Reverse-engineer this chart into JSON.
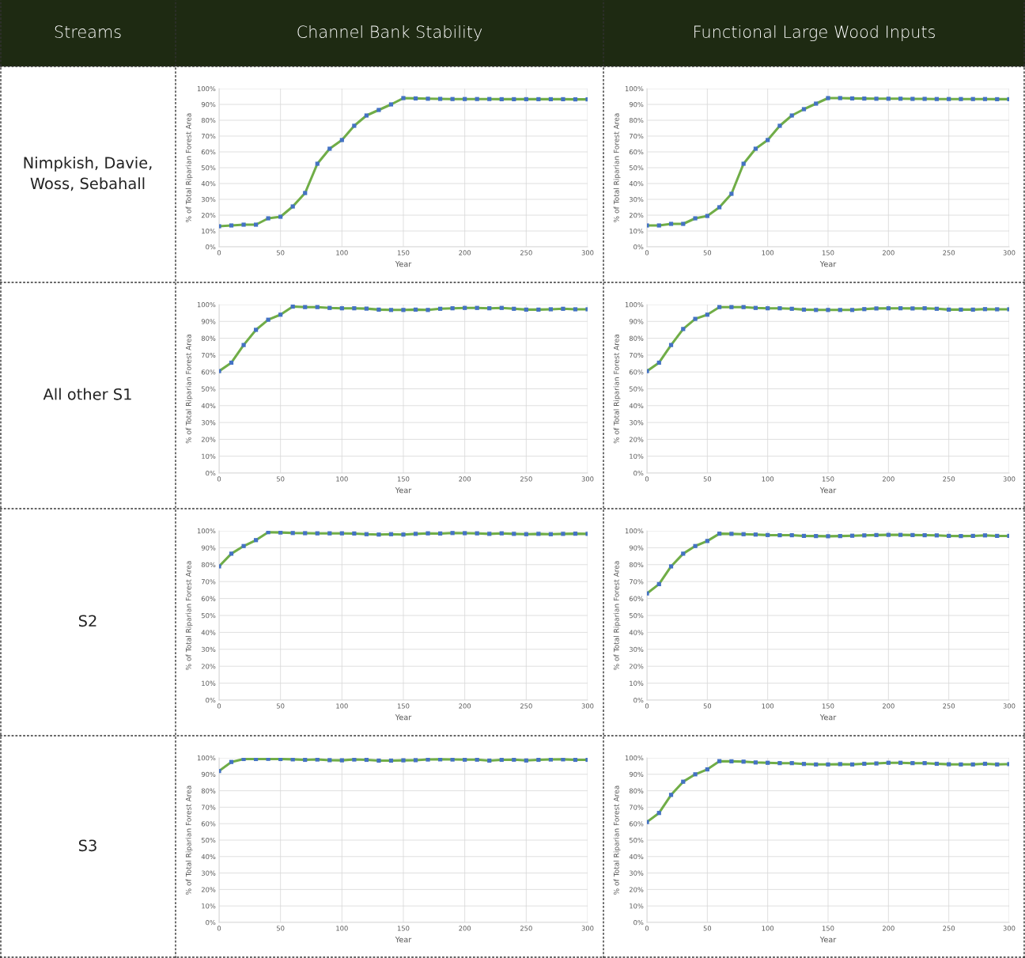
{
  "chart_data": [
    {
      "type": "other",
      "annotations": [
        "Streams",
        "Channel Bank Stability",
        "Functional Large Wood Inputs",
        "Nimpkish, Davie, Woss, Sebahall",
        "All other S1",
        "S2",
        "S3"
      ]
    },
    {
      "type": "line",
      "xlabel": "Year",
      "ylabel": "% of Total Riparian Forest Area",
      "x": [
        0,
        10,
        20,
        30,
        40,
        50,
        60,
        70,
        80,
        90,
        100,
        110,
        120,
        130,
        140,
        150,
        160,
        170,
        180,
        190,
        200,
        210,
        220,
        230,
        240,
        250,
        260,
        270,
        280,
        290,
        300
      ],
      "xlim": [
        0,
        300
      ],
      "xticks": [
        0,
        50,
        100,
        150,
        200,
        250,
        300
      ],
      "ylim": [
        0,
        100
      ],
      "yticks": [
        {
          "value": 0,
          "label": "0%"
        },
        {
          "value": 10,
          "label": "10%"
        },
        {
          "value": 20,
          "label": "20%"
        },
        {
          "value": 30,
          "label": "30%"
        },
        {
          "value": 40,
          "label": "40%"
        },
        {
          "value": 50,
          "label": "50%"
        },
        {
          "value": 60,
          "label": "60%"
        },
        {
          "value": 70,
          "label": "70%"
        },
        {
          "value": 80,
          "label": "80%"
        },
        {
          "value": 90,
          "label": "90%"
        },
        {
          "value": 100,
          "label": "100%"
        }
      ],
      "grid": true,
      "marker": "square",
      "line_style": "solid",
      "series": [
        {
          "color": "#70ad47",
          "colors": [
            "#4472c4",
            "#4472c4",
            "#4472c4",
            "#4472c4",
            "#4472c4",
            "#4472c4",
            "#4472c4",
            "#4472c4",
            "#4472c4",
            "#4472c4",
            "#4472c4",
            "#4472c4",
            "#4472c4",
            "#4472c4",
            "#4472c4",
            "#4472c4",
            "#4472c4",
            "#4472c4",
            "#4472c4",
            "#4472c4",
            "#4472c4",
            "#4472c4",
            "#4472c4",
            "#4472c4",
            "#4472c4",
            "#4472c4",
            "#4472c4",
            "#4472c4",
            "#4472c4",
            "#4472c4",
            "#4472c4"
          ],
          "values": [
            13,
            13.5,
            14,
            14,
            18,
            19,
            25.5,
            34,
            52.5,
            62,
            67.5,
            76.5,
            83,
            86.5,
            90,
            94,
            93.8,
            93.6,
            93.5,
            93.4,
            93.4,
            93.4,
            93.4,
            93.3,
            93.3,
            93.3,
            93.3,
            93.3,
            93.3,
            93.2,
            93.2
          ]
        }
      ]
    },
    {
      "type": "line",
      "xlabel": "Year",
      "ylabel": "% of Total Riparian Forest Area",
      "x": [
        0,
        10,
        20,
        30,
        40,
        50,
        60,
        70,
        80,
        90,
        100,
        110,
        120,
        130,
        140,
        150,
        160,
        170,
        180,
        190,
        200,
        210,
        220,
        230,
        240,
        250,
        260,
        270,
        280,
        290,
        300
      ],
      "xlim": [
        0,
        300
      ],
      "xticks": [
        0,
        50,
        100,
        150,
        200,
        250,
        300
      ],
      "ylim": [
        0,
        100
      ],
      "yticks": [
        {
          "value": 0,
          "label": "0%"
        },
        {
          "value": 10,
          "label": "10%"
        },
        {
          "value": 20,
          "label": "20%"
        },
        {
          "value": 30,
          "label": "30%"
        },
        {
          "value": 40,
          "label": "40%"
        },
        {
          "value": 50,
          "label": "50%"
        },
        {
          "value": 60,
          "label": "60%"
        },
        {
          "value": 70,
          "label": "70%"
        },
        {
          "value": 80,
          "label": "80%"
        },
        {
          "value": 90,
          "label": "90%"
        },
        {
          "value": 100,
          "label": "100%"
        }
      ],
      "grid": true,
      "marker": "square",
      "line_style": "solid",
      "series": [
        {
          "color": "#70ad47",
          "colors": [
            "#4472c4",
            "#4472c4",
            "#4472c4",
            "#4472c4",
            "#4472c4",
            "#4472c4",
            "#4472c4",
            "#4472c4",
            "#4472c4",
            "#4472c4",
            "#4472c4",
            "#4472c4",
            "#4472c4",
            "#4472c4",
            "#4472c4",
            "#4472c4",
            "#4472c4",
            "#4472c4",
            "#4472c4",
            "#4472c4",
            "#4472c4",
            "#4472c4",
            "#4472c4",
            "#4472c4",
            "#4472c4",
            "#4472c4",
            "#4472c4",
            "#4472c4",
            "#4472c4",
            "#4472c4",
            "#4472c4"
          ],
          "values": [
            13.5,
            13.5,
            14.5,
            14.5,
            18,
            19.5,
            25,
            33.5,
            52.5,
            62,
            67.5,
            76.5,
            83,
            87,
            90.5,
            94,
            94,
            93.8,
            93.7,
            93.6,
            93.6,
            93.6,
            93.5,
            93.5,
            93.4,
            93.4,
            93.4,
            93.4,
            93.4,
            93.3,
            93.3
          ]
        }
      ]
    },
    {
      "type": "line",
      "xlabel": "Year",
      "ylabel": "% of Total Riparian Forest Area",
      "x": [
        0,
        10,
        20,
        30,
        40,
        50,
        60,
        70,
        80,
        90,
        100,
        110,
        120,
        130,
        140,
        150,
        160,
        170,
        180,
        190,
        200,
        210,
        220,
        230,
        240,
        250,
        260,
        270,
        280,
        290,
        300
      ],
      "xlim": [
        0,
        300
      ],
      "xticks": [
        0,
        50,
        100,
        150,
        200,
        250,
        300
      ],
      "ylim": [
        0,
        100
      ],
      "yticks": [
        {
          "value": 0,
          "label": "0%"
        },
        {
          "value": 10,
          "label": "10%"
        },
        {
          "value": 20,
          "label": "20%"
        },
        {
          "value": 30,
          "label": "30%"
        },
        {
          "value": 40,
          "label": "40%"
        },
        {
          "value": 50,
          "label": "50%"
        },
        {
          "value": 60,
          "label": "60%"
        },
        {
          "value": 70,
          "label": "70%"
        },
        {
          "value": 80,
          "label": "80%"
        },
        {
          "value": 90,
          "label": "90%"
        },
        {
          "value": 100,
          "label": "100%"
        }
      ],
      "grid": true,
      "marker": "square",
      "line_style": "solid",
      "series": [
        {
          "color": "#70ad47",
          "colors": [
            "#4472c4",
            "#4472c4",
            "#4472c4",
            "#4472c4",
            "#4472c4",
            "#4472c4",
            "#4472c4",
            "#4472c4",
            "#4472c4",
            "#4472c4",
            "#4472c4",
            "#4472c4",
            "#4472c4",
            "#4472c4",
            "#4472c4",
            "#4472c4",
            "#4472c4",
            "#4472c4",
            "#4472c4",
            "#4472c4",
            "#4472c4",
            "#4472c4",
            "#4472c4",
            "#4472c4",
            "#4472c4",
            "#4472c4",
            "#4472c4",
            "#4472c4",
            "#4472c4",
            "#4472c4",
            "#4472c4"
          ],
          "values": [
            60.5,
            65.5,
            76,
            85,
            91,
            94,
            98.8,
            98.5,
            98.5,
            98,
            97.8,
            97.8,
            97.6,
            97,
            96.8,
            96.8,
            97,
            96.8,
            97.5,
            97.8,
            98,
            98,
            97.8,
            98,
            97.5,
            97,
            97,
            97.2,
            97.5,
            97.2,
            97.2
          ]
        }
      ]
    },
    {
      "type": "line",
      "xlabel": "Year",
      "ylabel": "% of Total Riparian Forest Area",
      "x": [
        0,
        10,
        20,
        30,
        40,
        50,
        60,
        70,
        80,
        90,
        100,
        110,
        120,
        130,
        140,
        150,
        160,
        170,
        180,
        190,
        200,
        210,
        220,
        230,
        240,
        250,
        260,
        270,
        280,
        290,
        300
      ],
      "xlim": [
        0,
        300
      ],
      "xticks": [
        0,
        50,
        100,
        150,
        200,
        250,
        300
      ],
      "ylim": [
        0,
        100
      ],
      "yticks": [
        {
          "value": 0,
          "label": "0%"
        },
        {
          "value": 10,
          "label": "10%"
        },
        {
          "value": 20,
          "label": "20%"
        },
        {
          "value": 30,
          "label": "30%"
        },
        {
          "value": 40,
          "label": "40%"
        },
        {
          "value": 50,
          "label": "50%"
        },
        {
          "value": 60,
          "label": "60%"
        },
        {
          "value": 70,
          "label": "70%"
        },
        {
          "value": 80,
          "label": "80%"
        },
        {
          "value": 90,
          "label": "90%"
        },
        {
          "value": 100,
          "label": "100%"
        }
      ],
      "grid": true,
      "marker": "square",
      "line_style": "solid",
      "series": [
        {
          "color": "#70ad47",
          "colors": [
            "#4472c4",
            "#4472c4",
            "#4472c4",
            "#4472c4",
            "#4472c4",
            "#4472c4",
            "#4472c4",
            "#4472c4",
            "#4472c4",
            "#4472c4",
            "#4472c4",
            "#4472c4",
            "#4472c4",
            "#4472c4",
            "#4472c4",
            "#4472c4",
            "#4472c4",
            "#4472c4",
            "#4472c4",
            "#4472c4",
            "#4472c4",
            "#4472c4",
            "#4472c4",
            "#4472c4",
            "#4472c4",
            "#4472c4",
            "#4472c4",
            "#4472c4",
            "#4472c4",
            "#4472c4",
            "#4472c4"
          ],
          "values": [
            60.5,
            65.5,
            76,
            85.5,
            91.5,
            94,
            98.5,
            98.5,
            98.5,
            98,
            97.8,
            97.8,
            97.5,
            97,
            96.8,
            96.8,
            96.8,
            96.8,
            97.3,
            97.7,
            97.8,
            97.8,
            97.7,
            97.8,
            97.5,
            97,
            97,
            97,
            97.3,
            97.2,
            97.2
          ]
        }
      ]
    },
    {
      "type": "line",
      "xlabel": "Year",
      "ylabel": "% of Total Riparian Forest Area",
      "x": [
        0,
        10,
        20,
        30,
        40,
        50,
        60,
        70,
        80,
        90,
        100,
        110,
        120,
        130,
        140,
        150,
        160,
        170,
        180,
        190,
        200,
        210,
        220,
        230,
        240,
        250,
        260,
        270,
        280,
        290,
        300
      ],
      "xlim": [
        0,
        300
      ],
      "xticks": [
        0,
        50,
        100,
        150,
        200,
        250,
        300
      ],
      "ylim": [
        0,
        100
      ],
      "yticks": [
        {
          "value": 0,
          "label": "0%"
        },
        {
          "value": 10,
          "label": "10%"
        },
        {
          "value": 20,
          "label": "20%"
        },
        {
          "value": 30,
          "label": "30%"
        },
        {
          "value": 40,
          "label": "40%"
        },
        {
          "value": 50,
          "label": "50%"
        },
        {
          "value": 60,
          "label": "60%"
        },
        {
          "value": 70,
          "label": "70%"
        },
        {
          "value": 80,
          "label": "80%"
        },
        {
          "value": 90,
          "label": "90%"
        },
        {
          "value": 100,
          "label": "100%"
        }
      ],
      "grid": true,
      "marker": "square",
      "line_style": "solid",
      "series": [
        {
          "color": "#70ad47",
          "colors": [
            "#4472c4",
            "#4472c4",
            "#4472c4",
            "#4472c4",
            "#4472c4",
            "#4472c4",
            "#4472c4",
            "#4472c4",
            "#4472c4",
            "#4472c4",
            "#4472c4",
            "#4472c4",
            "#4472c4",
            "#4472c4",
            "#4472c4",
            "#4472c4",
            "#4472c4",
            "#4472c4",
            "#4472c4",
            "#4472c4",
            "#4472c4",
            "#4472c4",
            "#4472c4",
            "#4472c4",
            "#4472c4",
            "#4472c4",
            "#4472c4",
            "#4472c4",
            "#4472c4",
            "#4472c4",
            "#4472c4"
          ],
          "values": [
            79,
            86.5,
            91,
            94.5,
            99.2,
            99,
            98.7,
            98.6,
            98.5,
            98.5,
            98.5,
            98.4,
            98,
            97.8,
            98,
            97.8,
            98.2,
            98.5,
            98.4,
            98.7,
            98.6,
            98.5,
            98.2,
            98.5,
            98.2,
            98,
            98.2,
            98,
            98.2,
            98.3,
            98.2
          ]
        }
      ]
    },
    {
      "type": "line",
      "xlabel": "Year",
      "ylabel": "% of Total Riparian Forest Area",
      "x": [
        0,
        10,
        20,
        30,
        40,
        50,
        60,
        70,
        80,
        90,
        100,
        110,
        120,
        130,
        140,
        150,
        160,
        170,
        180,
        190,
        200,
        210,
        220,
        230,
        240,
        250,
        260,
        270,
        280,
        290,
        300
      ],
      "xlim": [
        0,
        300
      ],
      "xticks": [
        0,
        50,
        100,
        150,
        200,
        250,
        300
      ],
      "ylim": [
        0,
        100
      ],
      "yticks": [
        {
          "value": 0,
          "label": "0%"
        },
        {
          "value": 10,
          "label": "10%"
        },
        {
          "value": 20,
          "label": "20%"
        },
        {
          "value": 30,
          "label": "30%"
        },
        {
          "value": 40,
          "label": "40%"
        },
        {
          "value": 50,
          "label": "50%"
        },
        {
          "value": 60,
          "label": "60%"
        },
        {
          "value": 70,
          "label": "70%"
        },
        {
          "value": 80,
          "label": "80%"
        },
        {
          "value": 90,
          "label": "90%"
        },
        {
          "value": 100,
          "label": "100%"
        }
      ],
      "grid": true,
      "marker": "square",
      "line_style": "solid",
      "series": [
        {
          "color": "#70ad47",
          "colors": [
            "#4472c4",
            "#4472c4",
            "#4472c4",
            "#4472c4",
            "#4472c4",
            "#4472c4",
            "#4472c4",
            "#4472c4",
            "#4472c4",
            "#4472c4",
            "#4472c4",
            "#4472c4",
            "#4472c4",
            "#4472c4",
            "#4472c4",
            "#4472c4",
            "#4472c4",
            "#4472c4",
            "#4472c4",
            "#4472c4",
            "#4472c4",
            "#4472c4",
            "#4472c4",
            "#4472c4",
            "#4472c4",
            "#4472c4",
            "#4472c4",
            "#4472c4",
            "#4472c4",
            "#4472c4",
            "#4472c4"
          ],
          "values": [
            63,
            68.5,
            79,
            86.5,
            91,
            94,
            98.3,
            98.2,
            98,
            97.8,
            97.5,
            97.4,
            97.4,
            97,
            96.9,
            96.8,
            96.9,
            97.1,
            97.3,
            97.5,
            97.6,
            97.6,
            97.5,
            97.4,
            97.3,
            97,
            96.9,
            97,
            97.3,
            97,
            97
          ]
        }
      ]
    },
    {
      "type": "line",
      "xlabel": "Year",
      "ylabel": "% of Total Riparian Forest Area",
      "x": [
        0,
        10,
        20,
        30,
        40,
        50,
        60,
        70,
        80,
        90,
        100,
        110,
        120,
        130,
        140,
        150,
        160,
        170,
        180,
        190,
        200,
        210,
        220,
        230,
        240,
        250,
        260,
        270,
        280,
        290,
        300
      ],
      "xlim": [
        0,
        300
      ],
      "xticks": [
        0,
        50,
        100,
        150,
        200,
        250,
        300
      ],
      "ylim": [
        0,
        100
      ],
      "yticks": [
        {
          "value": 0,
          "label": "0%"
        },
        {
          "value": 10,
          "label": "10%"
        },
        {
          "value": 20,
          "label": "20%"
        },
        {
          "value": 30,
          "label": "30%"
        },
        {
          "value": 40,
          "label": "40%"
        },
        {
          "value": 50,
          "label": "50%"
        },
        {
          "value": 60,
          "label": "60%"
        },
        {
          "value": 70,
          "label": "70%"
        },
        {
          "value": 80,
          "label": "80%"
        },
        {
          "value": 90,
          "label": "90%"
        },
        {
          "value": 100,
          "label": "100%"
        }
      ],
      "grid": true,
      "marker": "square",
      "line_style": "solid",
      "series": [
        {
          "color": "#70ad47",
          "colors": [
            "#4472c4",
            "#4472c4",
            "#4472c4",
            "#4472c4",
            "#4472c4",
            "#4472c4",
            "#4472c4",
            "#4472c4",
            "#4472c4",
            "#4472c4",
            "#4472c4",
            "#4472c4",
            "#4472c4",
            "#4472c4",
            "#4472c4",
            "#4472c4",
            "#4472c4",
            "#4472c4",
            "#4472c4",
            "#4472c4",
            "#4472c4",
            "#4472c4",
            "#4472c4",
            "#4472c4",
            "#4472c4",
            "#4472c4",
            "#4472c4",
            "#4472c4",
            "#4472c4",
            "#4472c4",
            "#4472c4"
          ],
          "values": [
            92,
            97.5,
            99.3,
            99.3,
            99.4,
            99.3,
            99.1,
            98.8,
            99,
            98.6,
            98.5,
            99,
            98.8,
            98.3,
            98.3,
            98.5,
            98.6,
            99,
            99.1,
            99,
            98.9,
            98.9,
            98.3,
            98.8,
            98.9,
            98.4,
            98.8,
            99,
            99.1,
            98.8,
            98.8
          ]
        }
      ]
    },
    {
      "type": "line",
      "xlabel": "Year",
      "ylabel": "% of Total Riparian Forest Area",
      "x": [
        0,
        10,
        20,
        30,
        40,
        50,
        60,
        70,
        80,
        90,
        100,
        110,
        120,
        130,
        140,
        150,
        160,
        170,
        180,
        190,
        200,
        210,
        220,
        230,
        240,
        250,
        260,
        270,
        280,
        290,
        300
      ],
      "xlim": [
        0,
        300
      ],
      "xticks": [
        0,
        50,
        100,
        150,
        200,
        250,
        300
      ],
      "ylim": [
        0,
        100
      ],
      "yticks": [
        {
          "value": 0,
          "label": "0%"
        },
        {
          "value": 10,
          "label": "10%"
        },
        {
          "value": 20,
          "label": "20%"
        },
        {
          "value": 30,
          "label": "30%"
        },
        {
          "value": 40,
          "label": "40%"
        },
        {
          "value": 50,
          "label": "50%"
        },
        {
          "value": 60,
          "label": "60%"
        },
        {
          "value": 70,
          "label": "70%"
        },
        {
          "value": 80,
          "label": "80%"
        },
        {
          "value": 90,
          "label": "90%"
        },
        {
          "value": 100,
          "label": "100%"
        }
      ],
      "grid": true,
      "marker": "square",
      "line_style": "solid",
      "series": [
        {
          "color": "#70ad47",
          "colors": [
            "#4472c4",
            "#4472c4",
            "#4472c4",
            "#4472c4",
            "#4472c4",
            "#4472c4",
            "#4472c4",
            "#4472c4",
            "#4472c4",
            "#4472c4",
            "#4472c4",
            "#4472c4",
            "#4472c4",
            "#4472c4",
            "#4472c4",
            "#4472c4",
            "#4472c4",
            "#4472c4",
            "#4472c4",
            "#4472c4",
            "#4472c4",
            "#4472c4",
            "#4472c4",
            "#4472c4",
            "#4472c4",
            "#4472c4",
            "#4472c4",
            "#4472c4",
            "#4472c4",
            "#4472c4",
            "#4472c4"
          ],
          "values": [
            61,
            66.5,
            77.5,
            85.5,
            90,
            93,
            98,
            97.9,
            97.7,
            97.2,
            97,
            96.8,
            96.8,
            96.3,
            96,
            96,
            96.2,
            96,
            96.4,
            96.6,
            97,
            97,
            96.8,
            96.8,
            96.4,
            96.1,
            96,
            96,
            96.4,
            96,
            96.2
          ]
        }
      ]
    }
  ]
}
